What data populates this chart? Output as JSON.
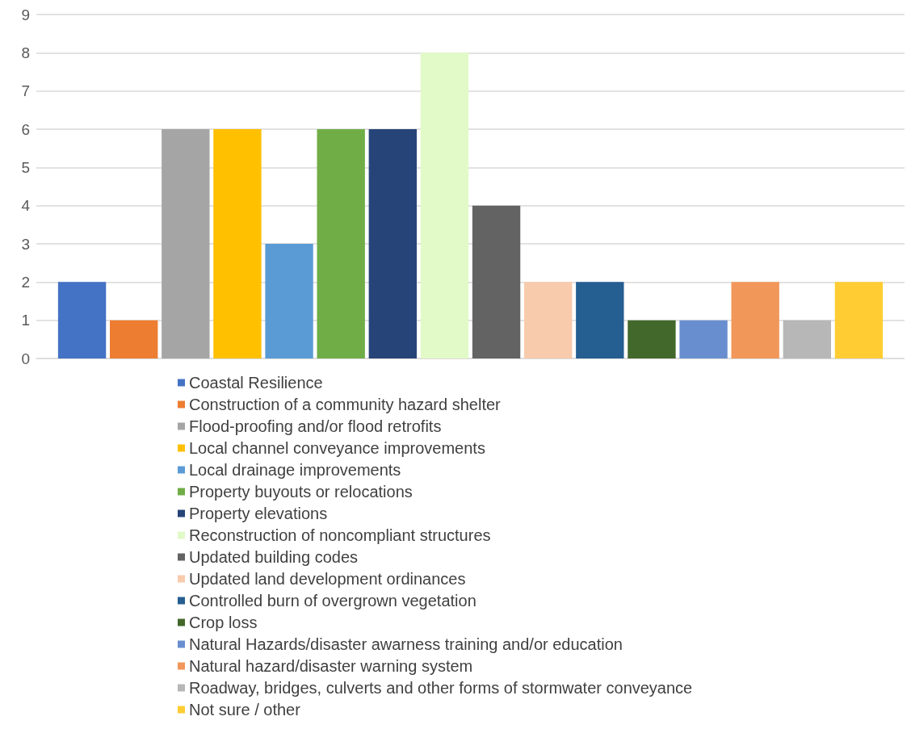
{
  "chart_data": {
    "type": "bar",
    "categories": [
      null
    ],
    "series": [
      {
        "name": "Coastal Resilience",
        "color": "#4472c4",
        "values": [
          2
        ]
      },
      {
        "name": "Construction of a community hazard shelter",
        "color": "#ed7d31",
        "values": [
          1
        ]
      },
      {
        "name": "Flood-proofing and/or flood retrofits",
        "color": "#a5a5a5",
        "values": [
          6
        ]
      },
      {
        "name": "Local channel conveyance improvements",
        "color": "#ffc000",
        "values": [
          6
        ]
      },
      {
        "name": "Local drainage improvements",
        "color": "#5b9bd5",
        "values": [
          3
        ]
      },
      {
        "name": "Property buyouts or relocations",
        "color": "#70ad47",
        "values": [
          6
        ]
      },
      {
        "name": "Property elevations",
        "color": "#264478",
        "values": [
          6
        ]
      },
      {
        "name": "Reconstruction of noncompliant structures",
        "color": "#e2f9c8",
        "values": [
          8
        ]
      },
      {
        "name": "Updated building codes",
        "color": "#636363",
        "values": [
          4
        ]
      },
      {
        "name": "Updated land development ordinances",
        "color": "#f8cbad",
        "values": [
          2
        ]
      },
      {
        "name": "Controlled burn of overgrown vegetation",
        "color": "#255e91",
        "values": [
          2
        ]
      },
      {
        "name": "Crop loss",
        "color": "#43682b",
        "values": [
          1
        ]
      },
      {
        "name": "Natural Hazards/disaster awarness training and/or education",
        "color": "#698ed0",
        "values": [
          1
        ]
      },
      {
        "name": "Natural hazard/disaster warning system",
        "color": "#f1975a",
        "values": [
          2
        ]
      },
      {
        "name": "Roadway, bridges, culverts and other forms of stormwater conveyance",
        "color": "#b7b7b7",
        "values": [
          1
        ]
      },
      {
        "name": "Not sure / other",
        "color": "#ffcd33",
        "values": [
          2
        ]
      }
    ],
    "ylim": [
      0,
      9
    ],
    "yticks": [
      0,
      1,
      2,
      3,
      4,
      5,
      6,
      7,
      8,
      9
    ],
    "grid": "y",
    "legend": "bottom"
  }
}
